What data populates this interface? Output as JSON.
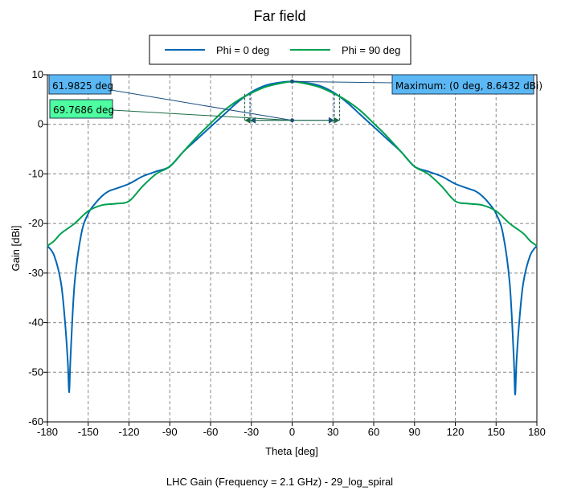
{
  "chart_data": {
    "type": "line",
    "title": "Far field",
    "xlabel": "Theta [deg]",
    "ylabel": "Gain [dBi]",
    "caption": "LHC Gain (Frequency = 2.1 GHz) - 29_log_spiral",
    "xlim": [
      -180,
      180
    ],
    "ylim": [
      -60,
      10
    ],
    "xticks": [
      -180,
      -150,
      -120,
      -90,
      -60,
      -30,
      0,
      30,
      60,
      90,
      120,
      150,
      180
    ],
    "yticks": [
      -60,
      -50,
      -40,
      -30,
      -20,
      -10,
      0,
      10
    ],
    "grid": true,
    "legend_position": "top",
    "series": [
      {
        "name": "Phi = 0 deg",
        "color": "#0066b3",
        "x": [
          -180,
          -175,
          -170,
          -167,
          -165,
          -164,
          -163,
          -160,
          -155,
          -150,
          -145,
          -140,
          -135,
          -130,
          -120,
          -110,
          -100,
          -90,
          -80,
          -70,
          -60,
          -50,
          -40,
          -30,
          -20,
          -10,
          0,
          10,
          20,
          30,
          40,
          50,
          60,
          70,
          80,
          90,
          100,
          110,
          120,
          130,
          135,
          140,
          145,
          150,
          155,
          160,
          163,
          164,
          165,
          167,
          170,
          175,
          180
        ],
        "y": [
          -24.5,
          -26.5,
          -32,
          -40,
          -48,
          -54,
          -47,
          -32,
          -22,
          -18,
          -16,
          -14.5,
          -13.5,
          -13,
          -12,
          -10.5,
          -9.5,
          -8.5,
          -5.5,
          -3,
          -0.5,
          2,
          4.5,
          6.5,
          7.8,
          8.4,
          8.64,
          8.4,
          7.8,
          6.5,
          4.5,
          2,
          -0.5,
          -3,
          -5.5,
          -8.5,
          -9.5,
          -10.5,
          -12,
          -13,
          -13.5,
          -14.5,
          -16,
          -18,
          -22,
          -32,
          -47,
          -54.5,
          -48,
          -40,
          -32,
          -26.5,
          -24.5
        ]
      },
      {
        "name": "Phi = 90 deg",
        "color": "#00a050",
        "x": [
          -180,
          -175,
          -170,
          -160,
          -150,
          -140,
          -130,
          -120,
          -110,
          -100,
          -90,
          -80,
          -70,
          -60,
          -50,
          -40,
          -30,
          -20,
          -10,
          0,
          10,
          20,
          30,
          40,
          50,
          60,
          70,
          80,
          90,
          100,
          110,
          120,
          130,
          140,
          150,
          160,
          170,
          175,
          180
        ],
        "y": [
          -24.5,
          -23.5,
          -22,
          -20,
          -17.5,
          -16.3,
          -16,
          -15.5,
          -12.5,
          -10,
          -8.5,
          -5.5,
          -2.5,
          0.2,
          2.8,
          4.8,
          6.3,
          7.5,
          8.2,
          8.6,
          8.2,
          7.5,
          6.3,
          4.8,
          2.8,
          0.2,
          -2.5,
          -5.5,
          -8.5,
          -10,
          -12.5,
          -15.5,
          -16,
          -16.3,
          -17.5,
          -20,
          -22,
          -23.5,
          -24.5
        ]
      }
    ],
    "annotations": [
      {
        "label": "61.9825 deg",
        "color": "#5bb8f5",
        "half_width": 30.99,
        "y": 0.8
      },
      {
        "label": "69.7686 deg",
        "color": "#4dffa0",
        "half_width": 34.88,
        "y": 0.8
      },
      {
        "label": "Maximum: (0 deg, 8.6432 dBi)",
        "color": "#5bb8f5",
        "x": 0,
        "y": 8.6432
      }
    ]
  }
}
